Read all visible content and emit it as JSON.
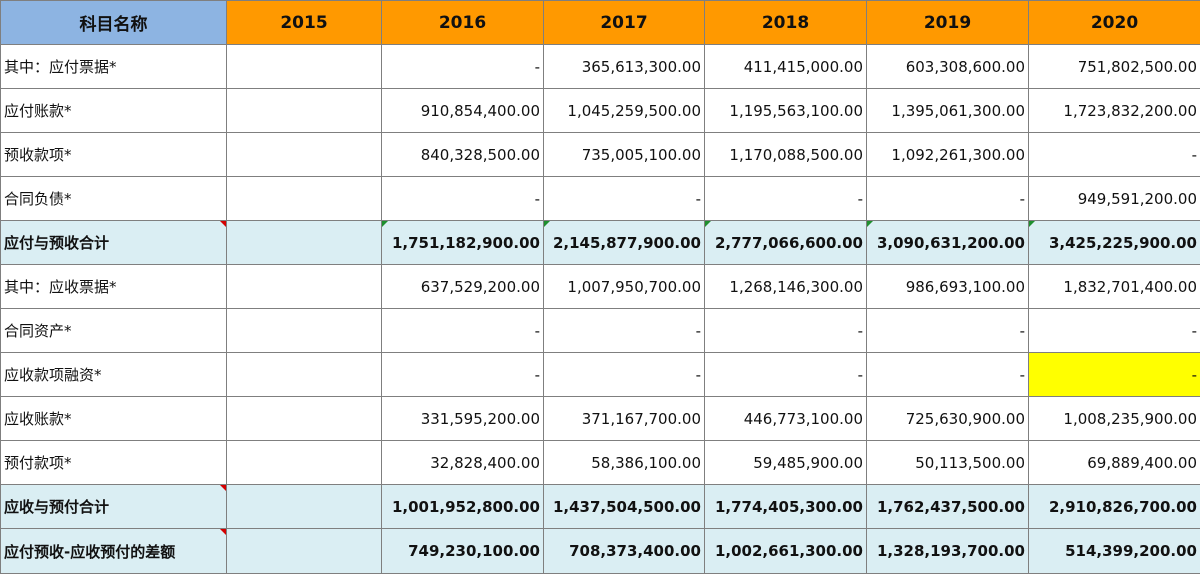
{
  "header": {
    "name": "科目名称",
    "years": [
      "2015",
      "2016",
      "2017",
      "2018",
      "2019",
      "2020"
    ]
  },
  "rows": [
    {
      "label": "其中：应付票据*",
      "values": [
        "",
        "-",
        "365,613,300.00",
        "411,415,000.00",
        "603,308,600.00",
        "751,802,500.00"
      ]
    },
    {
      "label": "应付账款*",
      "values": [
        "",
        "910,854,400.00",
        "1,045,259,500.00",
        "1,195,563,100.00",
        "1,395,061,300.00",
        "1,723,832,200.00"
      ]
    },
    {
      "label": "预收款项*",
      "values": [
        "",
        "840,328,500.00",
        "735,005,100.00",
        "1,170,088,500.00",
        "1,092,261,300.00",
        "-"
      ]
    },
    {
      "label": "合同负债*",
      "values": [
        "",
        "-",
        "-",
        "-",
        "-",
        "949,591,200.00"
      ]
    },
    {
      "label": "应付与预收合计",
      "values": [
        "",
        "1,751,182,900.00",
        "2,145,877,900.00",
        "2,777,066,600.00",
        "3,090,631,200.00",
        "3,425,225,900.00"
      ]
    },
    {
      "label": "其中：应收票据*",
      "values": [
        "",
        "637,529,200.00",
        "1,007,950,700.00",
        "1,268,146,300.00",
        "986,693,100.00",
        "1,832,701,400.00"
      ]
    },
    {
      "label": "合同资产*",
      "values": [
        "",
        "-",
        "-",
        "-",
        "-",
        "-"
      ]
    },
    {
      "label": "应收款项融资*",
      "values": [
        "",
        "-",
        "-",
        "-",
        "-",
        "-"
      ]
    },
    {
      "label": "应收账款*",
      "values": [
        "",
        "331,595,200.00",
        "371,167,700.00",
        "446,773,100.00",
        "725,630,900.00",
        "1,008,235,900.00"
      ]
    },
    {
      "label": "预付款项*",
      "values": [
        "",
        "32,828,400.00",
        "58,386,100.00",
        "59,485,900.00",
        "50,113,500.00",
        "69,889,400.00"
      ]
    },
    {
      "label": "应收与预付合计",
      "values": [
        "",
        "1,001,952,800.00",
        "1,437,504,500.00",
        "1,774,405,300.00",
        "1,762,437,500.00",
        "2,910,826,700.00"
      ]
    },
    {
      "label": "应付预收-应收预付的差额",
      "values": [
        "",
        "749,230,100.00",
        "708,373,400.00",
        "1,002,661,300.00",
        "1,328,193,700.00",
        "514,399,200.00"
      ]
    }
  ],
  "colors": {
    "header_name_bg": "#8db4e2",
    "header_year_bg": "#ff9900",
    "total_row_bg": "#daeef3",
    "highlight_cell_bg": "#ffff00",
    "comment_marker": "#d40000",
    "error_marker": "#1e8f2e"
  }
}
